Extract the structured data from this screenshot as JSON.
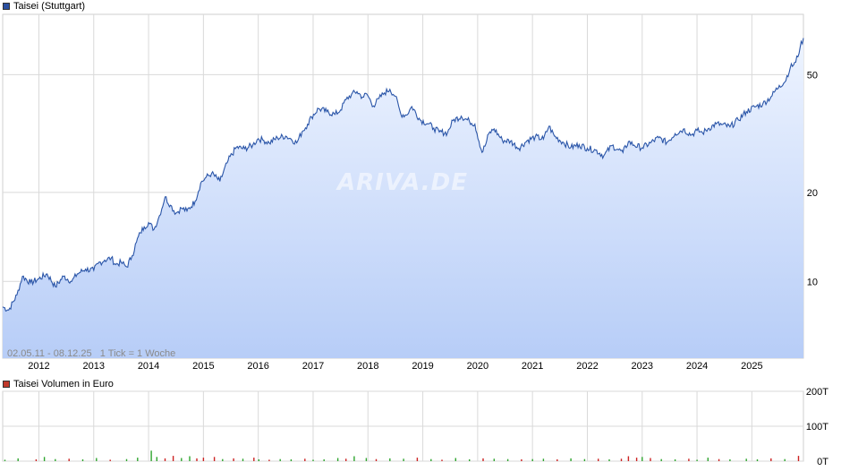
{
  "price_legend": {
    "label": "Taisei (Stuttgart)",
    "color": "#2a4fa0"
  },
  "volume_legend": {
    "label": "Taisei Volumen in Euro",
    "color": "#c0392b"
  },
  "info": {
    "range": "02.05.11 - 08.12.25",
    "tick": "1 Tick = 1 Woche"
  },
  "watermark": "ARIVA.DE",
  "colors": {
    "line": "#2a55a8",
    "fill_top": "#eef4ff",
    "fill_bottom": "#b7cdf7",
    "grid": "#d9d9d9",
    "vol_up": "#2ea52e",
    "vol_down": "#cc2222"
  },
  "chart_data": [
    {
      "type": "area",
      "name": "price",
      "yscale": "log",
      "ylim": [
        5.5,
        80
      ],
      "xlim": [
        2011.34,
        2025.94
      ],
      "x_ticks": [
        "2012",
        "2013",
        "2014",
        "2015",
        "2016",
        "2017",
        "2018",
        "2019",
        "2020",
        "2021",
        "2022",
        "2023",
        "2024",
        "2025"
      ],
      "y_ticks": [
        10,
        20,
        50
      ],
      "grid": true,
      "series": [
        {
          "x": [
            2011.34,
            2011.45,
            2011.6,
            2011.7,
            2011.85,
            2012.0,
            2012.15,
            2012.3,
            2012.45,
            2012.6,
            2012.7,
            2012.85,
            2013.0,
            2013.08,
            2013.2,
            2013.32,
            2013.4,
            2013.5,
            2013.6,
            2013.7,
            2013.78,
            2013.85,
            2013.92,
            2014.0,
            2014.1,
            2014.2,
            2014.3,
            2014.4,
            2014.5,
            2014.6,
            2014.7,
            2014.85,
            2014.95,
            2015.05,
            2015.15,
            2015.3,
            2015.45,
            2015.6,
            2015.75,
            2015.9,
            2016.0,
            2016.1,
            2016.2,
            2016.35,
            2016.5,
            2016.6,
            2016.7,
            2016.8,
            2016.9,
            2016.97,
            2017.1,
            2017.25,
            2017.4,
            2017.5,
            2017.6,
            2017.7,
            2017.8,
            2017.9,
            2017.98,
            2018.1,
            2018.2,
            2018.3,
            2018.4,
            2018.5,
            2018.6,
            2018.7,
            2018.8,
            2018.95,
            2019.1,
            2019.2,
            2019.3,
            2019.45,
            2019.55,
            2019.7,
            2019.85,
            2019.95,
            2020.08,
            2020.15,
            2020.2,
            2020.3,
            2020.45,
            2020.6,
            2020.75,
            2020.9,
            2021.05,
            2021.2,
            2021.3,
            2021.4,
            2021.55,
            2021.7,
            2021.85,
            2022.0,
            2022.15,
            2022.3,
            2022.45,
            2022.55,
            2022.65,
            2022.75,
            2022.85,
            2023.0,
            2023.15,
            2023.3,
            2023.45,
            2023.6,
            2023.75,
            2023.9,
            2024.0,
            2024.1,
            2024.2,
            2024.35,
            2024.45,
            2024.6,
            2024.75,
            2024.9,
            2025.05,
            2025.2,
            2025.35,
            2025.5,
            2025.6,
            2025.7,
            2025.8,
            2025.88,
            2025.94
          ],
          "values": [
            8.2,
            8.0,
            9.0,
            10.4,
            9.9,
            10.2,
            10.6,
            9.6,
            10.4,
            10.0,
            10.6,
            11.0,
            10.9,
            11.5,
            11.8,
            12.0,
            11.4,
            11.6,
            11.2,
            12.2,
            13.6,
            14.6,
            15.3,
            15.8,
            15.0,
            16.7,
            19.3,
            18.1,
            17.0,
            17.7,
            17.3,
            18.7,
            21.5,
            22.5,
            23.2,
            21.8,
            25.6,
            28.4,
            28.1,
            28.9,
            30.4,
            30.0,
            29.4,
            30.6,
            31.0,
            30.3,
            29.4,
            32.1,
            34.0,
            36.0,
            38.4,
            37.5,
            36.7,
            38.0,
            41.2,
            42.9,
            43.8,
            42.0,
            43.0,
            39.2,
            41.5,
            43.4,
            44.6,
            42.3,
            36.8,
            36.5,
            39.0,
            35.2,
            34.1,
            33.0,
            32.0,
            31.8,
            35.0,
            36.2,
            34.8,
            34.0,
            27.3,
            29.2,
            31.5,
            32.8,
            30.0,
            29.8,
            28.2,
            29.9,
            30.8,
            30.3,
            33.5,
            31.0,
            29.6,
            28.4,
            29.0,
            28.2,
            27.8,
            26.6,
            28.8,
            28.0,
            27.3,
            29.7,
            28.9,
            28.3,
            29.4,
            30.6,
            29.5,
            31.6,
            32.7,
            31.3,
            32.4,
            31.8,
            32.8,
            34.1,
            33.9,
            33.3,
            35.2,
            37.5,
            38.9,
            39.8,
            42.1,
            46.0,
            47.2,
            52.8,
            55.1,
            61.8,
            66.5
          ]
        }
      ]
    },
    {
      "type": "bar",
      "name": "volume",
      "ylim": [
        0,
        200
      ],
      "y_ticks": [
        "0T",
        "100T",
        "200T"
      ],
      "xlim": [
        2011.34,
        2025.94
      ],
      "bars": [
        {
          "x": 2011.38,
          "v": 4,
          "up": true
        },
        {
          "x": 2011.62,
          "v": 8,
          "up": true
        },
        {
          "x": 2011.95,
          "v": 5,
          "up": false
        },
        {
          "x": 2012.1,
          "v": 12,
          "up": true
        },
        {
          "x": 2012.3,
          "v": 6,
          "up": true
        },
        {
          "x": 2012.55,
          "v": 7,
          "up": false
        },
        {
          "x": 2012.8,
          "v": 5,
          "up": true
        },
        {
          "x": 2013.05,
          "v": 9,
          "up": true
        },
        {
          "x": 2013.3,
          "v": 4,
          "up": false
        },
        {
          "x": 2013.6,
          "v": 6,
          "up": true
        },
        {
          "x": 2013.8,
          "v": 10,
          "up": true
        },
        {
          "x": 2014.05,
          "v": 30,
          "up": true
        },
        {
          "x": 2014.15,
          "v": 12,
          "up": true
        },
        {
          "x": 2014.3,
          "v": 8,
          "up": false
        },
        {
          "x": 2014.45,
          "v": 15,
          "up": false
        },
        {
          "x": 2014.6,
          "v": 9,
          "up": true
        },
        {
          "x": 2014.75,
          "v": 14,
          "up": true
        },
        {
          "x": 2014.88,
          "v": 8,
          "up": false
        },
        {
          "x": 2015.0,
          "v": 10,
          "up": false
        },
        {
          "x": 2015.2,
          "v": 12,
          "up": false
        },
        {
          "x": 2015.35,
          "v": 6,
          "up": true
        },
        {
          "x": 2015.55,
          "v": 8,
          "up": false
        },
        {
          "x": 2015.72,
          "v": 7,
          "up": true
        },
        {
          "x": 2015.92,
          "v": 10,
          "up": false
        },
        {
          "x": 2016.01,
          "v": 5,
          "up": true
        },
        {
          "x": 2016.2,
          "v": 4,
          "up": false
        },
        {
          "x": 2016.4,
          "v": 6,
          "up": true
        },
        {
          "x": 2016.6,
          "v": 5,
          "up": true
        },
        {
          "x": 2016.85,
          "v": 7,
          "up": false
        },
        {
          "x": 2017.0,
          "v": 4,
          "up": true
        },
        {
          "x": 2017.2,
          "v": 5,
          "up": true
        },
        {
          "x": 2017.45,
          "v": 9,
          "up": true
        },
        {
          "x": 2017.6,
          "v": 7,
          "up": false
        },
        {
          "x": 2017.75,
          "v": 14,
          "up": true
        },
        {
          "x": 2017.97,
          "v": 9,
          "up": true
        },
        {
          "x": 2018.15,
          "v": 6,
          "up": false
        },
        {
          "x": 2018.4,
          "v": 8,
          "up": true
        },
        {
          "x": 2018.65,
          "v": 7,
          "up": true
        },
        {
          "x": 2018.9,
          "v": 10,
          "up": false
        },
        {
          "x": 2019.15,
          "v": 6,
          "up": true
        },
        {
          "x": 2019.35,
          "v": 4,
          "up": false
        },
        {
          "x": 2019.6,
          "v": 9,
          "up": true
        },
        {
          "x": 2019.85,
          "v": 5,
          "up": true
        },
        {
          "x": 2020.1,
          "v": 8,
          "up": false
        },
        {
          "x": 2020.3,
          "v": 7,
          "up": true
        },
        {
          "x": 2020.55,
          "v": 6,
          "up": true
        },
        {
          "x": 2020.8,
          "v": 5,
          "up": false
        },
        {
          "x": 2021.0,
          "v": 6,
          "up": true
        },
        {
          "x": 2021.2,
          "v": 7,
          "up": true
        },
        {
          "x": 2021.45,
          "v": 5,
          "up": false
        },
        {
          "x": 2021.7,
          "v": 8,
          "up": true
        },
        {
          "x": 2021.95,
          "v": 6,
          "up": true
        },
        {
          "x": 2022.2,
          "v": 7,
          "up": false
        },
        {
          "x": 2022.4,
          "v": 5,
          "up": true
        },
        {
          "x": 2022.62,
          "v": 7,
          "up": false
        },
        {
          "x": 2022.75,
          "v": 14,
          "up": false
        },
        {
          "x": 2022.9,
          "v": 10,
          "up": false
        },
        {
          "x": 2023.0,
          "v": 12,
          "up": true
        },
        {
          "x": 2023.15,
          "v": 9,
          "up": false
        },
        {
          "x": 2023.35,
          "v": 6,
          "up": true
        },
        {
          "x": 2023.6,
          "v": 5,
          "up": true
        },
        {
          "x": 2023.85,
          "v": 7,
          "up": false
        },
        {
          "x": 2024.0,
          "v": 4,
          "up": true
        },
        {
          "x": 2024.2,
          "v": 10,
          "up": true
        },
        {
          "x": 2024.4,
          "v": 6,
          "up": false
        },
        {
          "x": 2024.6,
          "v": 5,
          "up": true
        },
        {
          "x": 2024.9,
          "v": 7,
          "up": true
        },
        {
          "x": 2025.1,
          "v": 5,
          "up": true
        },
        {
          "x": 2025.35,
          "v": 8,
          "up": false
        },
        {
          "x": 2025.6,
          "v": 6,
          "up": true
        },
        {
          "x": 2025.85,
          "v": 15,
          "up": false
        }
      ]
    }
  ]
}
